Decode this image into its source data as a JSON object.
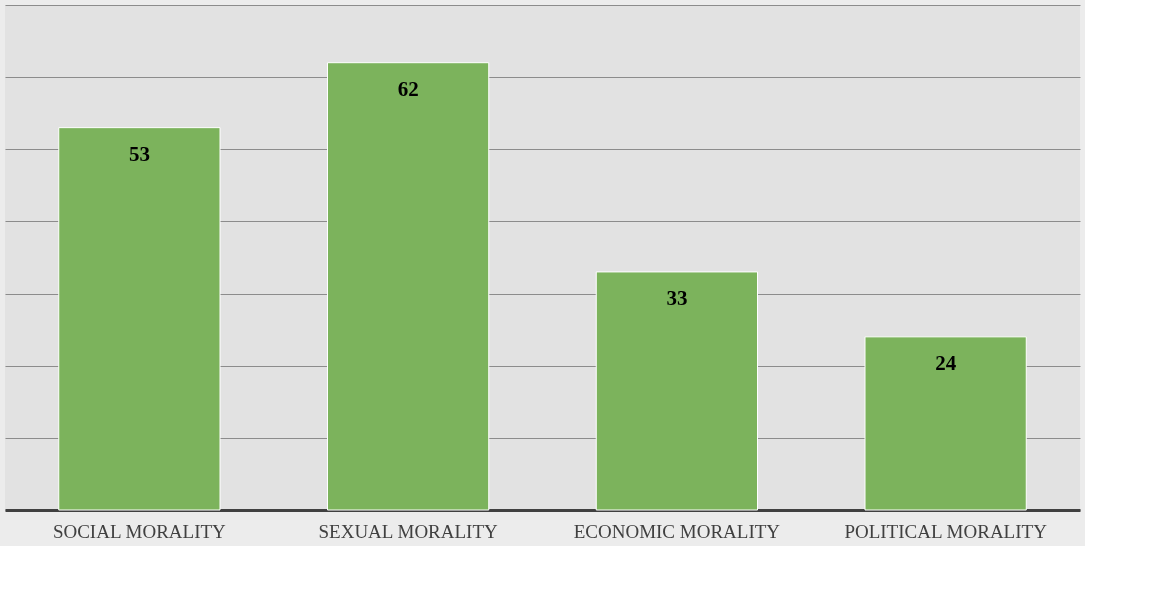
{
  "chart_data": {
    "type": "bar",
    "categories": [
      "SOCIAL MORALITY",
      "SEXUAL MORALITY",
      "ECONOMIC MORALITY",
      "POLITICAL MORALITY"
    ],
    "values": [
      53,
      62,
      33,
      24
    ],
    "color": "#7cb35c",
    "ylim": [
      0,
      70
    ],
    "yticks": [
      {
        "value": 0,
        "label": null
      },
      {
        "value": 10,
        "label": null
      },
      {
        "value": 20,
        "label": null
      },
      {
        "value": 30,
        "label": null
      },
      {
        "value": 40,
        "label": null
      },
      {
        "value": 50,
        "label": null
      },
      {
        "value": 60,
        "label": null
      },
      {
        "value": 70,
        "label": null
      }
    ],
    "grid": "y",
    "tick_labels": "x",
    "data_labels": true
  }
}
